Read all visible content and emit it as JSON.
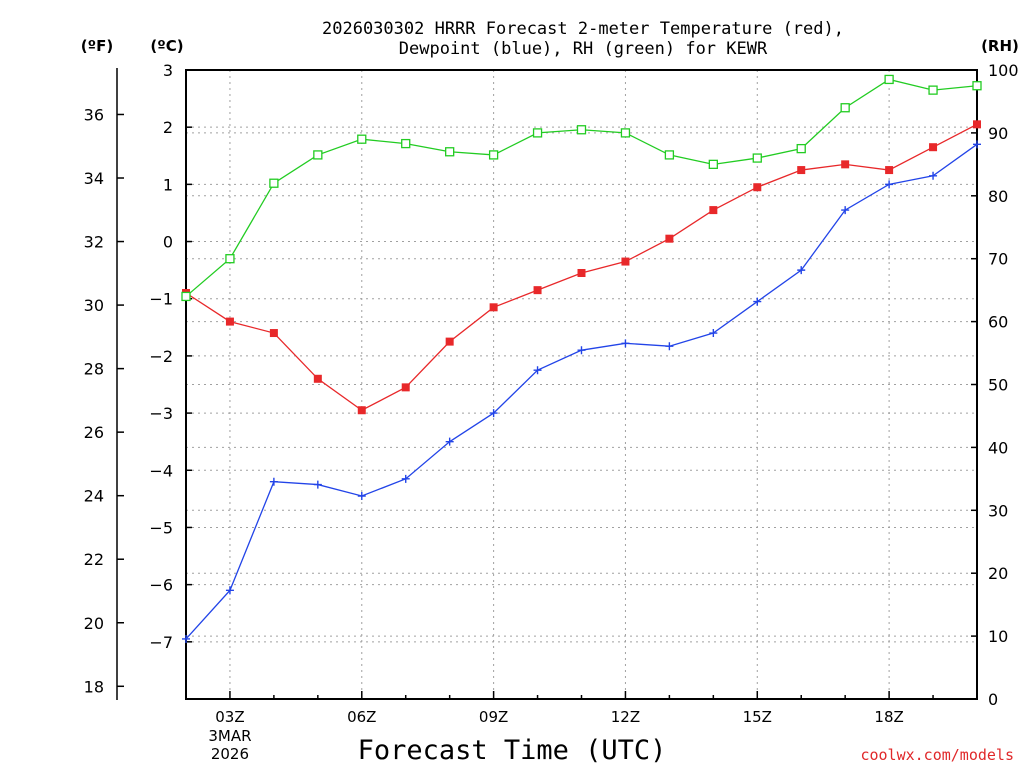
{
  "chart_data": {
    "type": "line",
    "title_lines": [
      "2026030302 HRRR Forecast 2-meter Temperature (red),",
      "Dewpoint (blue), RH (green) for KEWR"
    ],
    "xlabel": "Forecast Time (UTC)",
    "x": [
      2,
      3,
      4,
      5,
      6,
      7,
      8,
      9,
      10,
      11,
      12,
      13,
      14,
      15,
      16,
      17,
      18,
      19,
      20
    ],
    "xlim": [
      2,
      20
    ],
    "xticks": [
      {
        "x": 3,
        "label": "03Z",
        "sub": [
          "3MAR",
          "2026"
        ]
      },
      {
        "x": 6,
        "label": "06Z"
      },
      {
        "x": 9,
        "label": "09Z"
      },
      {
        "x": 12,
        "label": "12Z"
      },
      {
        "x": 15,
        "label": "15Z"
      },
      {
        "x": 18,
        "label": "18Z"
      }
    ],
    "axes": {
      "fahrenheit": {
        "label": "(ºF)",
        "ticks": [
          "18",
          "20",
          "22",
          "24",
          "26",
          "28",
          "30",
          "32",
          "34",
          "36"
        ]
      },
      "celsius": {
        "label": "(ºC)",
        "ticks": [
          "−7",
          "−6",
          "−5",
          "−4",
          "−3",
          "−2",
          "−1",
          "0",
          "1",
          "2",
          "3"
        ],
        "ylim": [
          -8,
          3
        ]
      },
      "rh": {
        "label": "(RH)",
        "ticks": [
          "0",
          "10",
          "20",
          "30",
          "40",
          "50",
          "60",
          "70",
          "80",
          "90",
          "100"
        ],
        "ylim": [
          0,
          100
        ]
      }
    },
    "series": [
      {
        "name": "Temperature",
        "axis": "celsius",
        "color": "#e8282a",
        "marker": "square-filled",
        "values": [
          -0.9,
          -1.4,
          -1.6,
          -2.4,
          -2.95,
          -2.55,
          -1.75,
          -1.15,
          -0.85,
          -0.55,
          -0.35,
          0.05,
          0.55,
          0.95,
          1.25,
          1.35,
          1.25,
          1.65,
          2.05
        ]
      },
      {
        "name": "Dewpoint",
        "axis": "celsius",
        "color": "#2244e8",
        "marker": "plus",
        "values": [
          -6.95,
          -6.1,
          -4.2,
          -4.25,
          -4.45,
          -4.15,
          -3.5,
          -3.0,
          -2.25,
          -1.9,
          -1.78,
          -1.83,
          -1.6,
          -1.05,
          -0.5,
          0.55,
          1.0,
          1.15,
          1.7
        ]
      },
      {
        "name": "RH",
        "axis": "rh",
        "color": "#22cc22",
        "marker": "square-open",
        "values": [
          64,
          70,
          82,
          86.5,
          89,
          88.3,
          87,
          86.5,
          90,
          90.5,
          90,
          86.5,
          85,
          86,
          87.5,
          94,
          98.5,
          96.8,
          97.5
        ]
      }
    ]
  },
  "credit": "coolwx.com/models"
}
